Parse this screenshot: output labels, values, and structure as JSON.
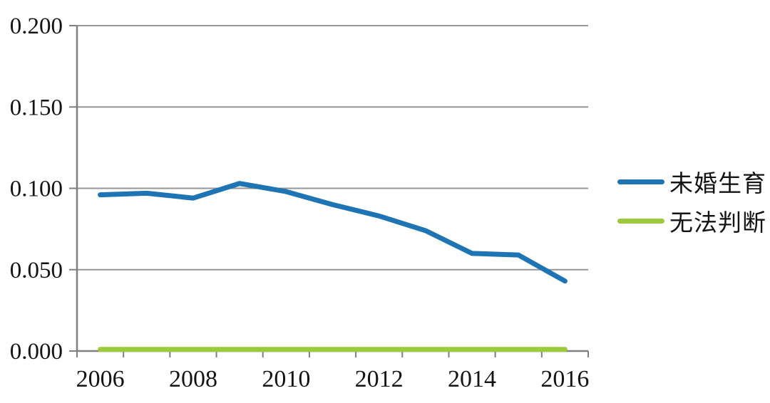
{
  "chart_data": {
    "type": "line",
    "x": [
      2006,
      2007,
      2008,
      2009,
      2010,
      2011,
      2012,
      2013,
      2014,
      2015,
      2016
    ],
    "x_tick_labels": [
      "2006",
      "2008",
      "2010",
      "2012",
      "2014",
      "2016"
    ],
    "y_ticks": [
      0.2,
      0.15,
      0.1,
      0.05,
      0.0
    ],
    "y_tick_labels": [
      "0.200",
      "0.150",
      "0.100",
      "0.050",
      "0.000"
    ],
    "ylim": [
      0,
      0.2
    ],
    "grid": "horizontal",
    "legend_position": "right",
    "series": [
      {
        "name": "未婚生育",
        "color": "#1f74b4",
        "values": [
          0.096,
          0.097,
          0.094,
          0.103,
          0.098,
          0.09,
          0.083,
          0.074,
          0.06,
          0.059,
          0.043
        ]
      },
      {
        "name": "无法判断",
        "color": "#9cca3c",
        "values": [
          0.001,
          0.001,
          0.001,
          0.001,
          0.001,
          0.001,
          0.001,
          0.001,
          0.001,
          0.001,
          0.001
        ]
      }
    ]
  },
  "colors": {
    "axis": "#7f7f7f",
    "grid": "#969696",
    "text": "#141414",
    "background": "#ffffff"
  }
}
